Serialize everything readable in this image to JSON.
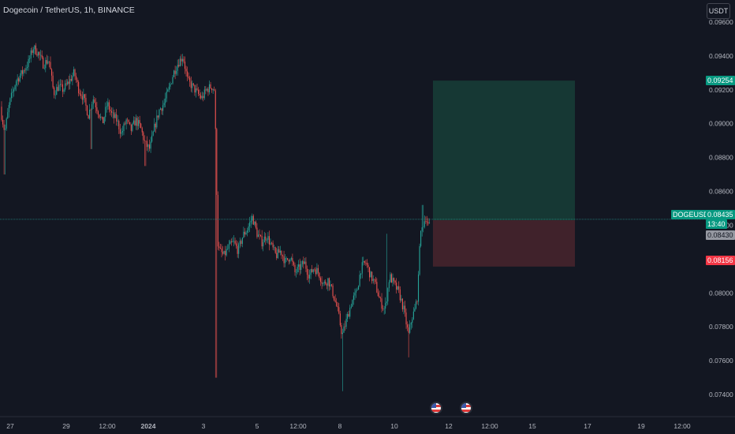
{
  "header": {
    "title": "Dogecoin / TetherUS, 1h, BINANCE",
    "currency_button": "USDT"
  },
  "colors": {
    "background": "#131722",
    "up": "#26a69a",
    "down": "#ef5350",
    "profit_zone": "#163834",
    "loss_zone": "#40222b",
    "price_line": "#26a69a",
    "axis_text": "#b2b5be"
  },
  "price_tags": {
    "target": "0.09254",
    "symbol": "DOGEUSDT",
    "current": "0.08435",
    "countdown": "13:40",
    "entry": "0.08430",
    "stop": "0.08156"
  },
  "event_markers": [
    {
      "icon": "us-flag-icon",
      "position": "x-axis near 11"
    },
    {
      "icon": "us-flag-icon",
      "position": "x-axis near 13"
    }
  ],
  "chart_data": {
    "type": "candlestick",
    "xlabel": "",
    "ylabel": "",
    "y_ticks": [
      "0.09600",
      "0.09400",
      "0.09200",
      "0.09000",
      "0.08800",
      "0.08600",
      "0.08400",
      "0.08200",
      "0.08000",
      "0.07800",
      "0.07600",
      "0.07400"
    ],
    "x_ticks": [
      "27",
      "29",
      "12:00",
      "2024",
      "3",
      "5",
      "12:00",
      "8",
      "10",
      "12",
      "12:00",
      "15",
      "17",
      "19",
      "12:00"
    ],
    "ylim": [
      0.0727,
      0.0973
    ],
    "grid": false,
    "price_line": 0.08435,
    "long_position": {
      "entry": 0.0843,
      "target": 0.09254,
      "stop": 0.08156
    },
    "price_path": [
      [
        0,
        0.091
      ],
      [
        6,
        0.0895
      ],
      [
        12,
        0.0912
      ],
      [
        20,
        0.0925
      ],
      [
        28,
        0.093
      ],
      [
        36,
        0.0936
      ],
      [
        42,
        0.0945
      ],
      [
        48,
        0.0942
      ],
      [
        55,
        0.0935
      ],
      [
        62,
        0.0938
      ],
      [
        68,
        0.0918
      ],
      [
        74,
        0.0922
      ],
      [
        80,
        0.092
      ],
      [
        88,
        0.0925
      ],
      [
        94,
        0.093
      ],
      [
        100,
        0.092
      ],
      [
        106,
        0.0915
      ],
      [
        112,
        0.0905
      ],
      [
        118,
        0.0915
      ],
      [
        124,
        0.0908
      ],
      [
        130,
        0.09
      ],
      [
        136,
        0.0912
      ],
      [
        142,
        0.0905
      ],
      [
        148,
        0.0902
      ],
      [
        154,
        0.0894
      ],
      [
        160,
        0.0902
      ],
      [
        166,
        0.0896
      ],
      [
        172,
        0.0902
      ],
      [
        178,
        0.0898
      ],
      [
        184,
        0.0888
      ],
      [
        190,
        0.0885
      ],
      [
        196,
        0.0898
      ],
      [
        202,
        0.0908
      ],
      [
        208,
        0.0912
      ],
      [
        214,
        0.092
      ],
      [
        220,
        0.093
      ],
      [
        226,
        0.0936
      ],
      [
        232,
        0.094
      ],
      [
        238,
        0.0925
      ],
      [
        244,
        0.0922
      ],
      [
        250,
        0.0918
      ],
      [
        256,
        0.0915
      ],
      [
        262,
        0.092
      ],
      [
        268,
        0.0922
      ],
      [
        272,
        0.092
      ],
      [
        274,
        0.088
      ],
      [
        276,
        0.083
      ],
      [
        278,
        0.0825
      ],
      [
        284,
        0.0822
      ],
      [
        290,
        0.0827
      ],
      [
        296,
        0.083
      ],
      [
        302,
        0.0825
      ],
      [
        308,
        0.0834
      ],
      [
        314,
        0.0838
      ],
      [
        320,
        0.0845
      ],
      [
        326,
        0.0835
      ],
      [
        332,
        0.083
      ],
      [
        338,
        0.0834
      ],
      [
        344,
        0.0828
      ],
      [
        350,
        0.0822
      ],
      [
        356,
        0.0825
      ],
      [
        362,
        0.0818
      ],
      [
        368,
        0.0822
      ],
      [
        374,
        0.0812
      ],
      [
        380,
        0.0815
      ],
      [
        386,
        0.0818
      ],
      [
        392,
        0.081
      ],
      [
        398,
        0.0815
      ],
      [
        404,
        0.0812
      ],
      [
        410,
        0.0805
      ],
      [
        416,
        0.0808
      ],
      [
        422,
        0.08
      ],
      [
        428,
        0.079
      ],
      [
        434,
        0.0775
      ],
      [
        440,
        0.0785
      ],
      [
        446,
        0.0795
      ],
      [
        452,
        0.08
      ],
      [
        458,
        0.0815
      ],
      [
        464,
        0.0818
      ],
      [
        470,
        0.081
      ],
      [
        476,
        0.0805
      ],
      [
        482,
        0.0795
      ],
      [
        488,
        0.079
      ],
      [
        494,
        0.081
      ],
      [
        500,
        0.0805
      ],
      [
        506,
        0.08
      ],
      [
        512,
        0.079
      ],
      [
        518,
        0.0775
      ],
      [
        522,
        0.0785
      ],
      [
        526,
        0.079
      ],
      [
        530,
        0.08
      ],
      [
        532,
        0.083
      ],
      [
        536,
        0.084
      ],
      [
        540,
        0.0845
      ],
      [
        544,
        0.0838
      ],
      [
        546,
        0.08435
      ]
    ]
  }
}
